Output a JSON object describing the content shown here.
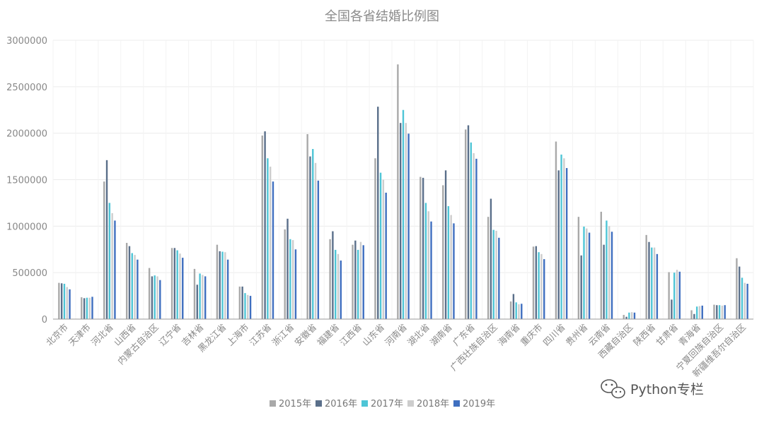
{
  "chart_data": {
    "type": "bar",
    "title": "全国各省结婚比例图",
    "xlabel": "",
    "ylabel": "",
    "ylim": [
      0,
      3000000
    ],
    "yticks": [
      0,
      500000,
      1000000,
      1500000,
      2000000,
      2500000,
      3000000
    ],
    "grid": true,
    "legend_position": "bottom",
    "categories": [
      "北京市",
      "天津市",
      "河北省",
      "山西省",
      "内蒙古自治区",
      "辽宁省",
      "吉林省",
      "黑龙江省",
      "上海市",
      "江苏省",
      "浙江省",
      "安徽省",
      "福建省",
      "江西省",
      "山东省",
      "河南省",
      "湖北省",
      "湖南省",
      "广东省",
      "广西壮族自治区",
      "海南省",
      "重庆市",
      "四川省",
      "贵州省",
      "云南省",
      "西藏自治区",
      "陕西省",
      "甘肃省",
      "青海省",
      "宁夏回族自治区",
      "新疆维吾尔自治区"
    ],
    "series": [
      {
        "name": "2015年",
        "color": "#a9a9a9",
        "values": [
          390000,
          235000,
          1480000,
          820000,
          550000,
          765000,
          540000,
          800000,
          350000,
          1975000,
          965000,
          1990000,
          860000,
          800000,
          1730000,
          2740000,
          1530000,
          1440000,
          2040000,
          1100000,
          190000,
          780000,
          1910000,
          1100000,
          1155000,
          45000,
          905000,
          505000,
          95000,
          155000,
          655000
        ]
      },
      {
        "name": "2016年",
        "color": "#5a6f8a",
        "values": [
          385000,
          225000,
          1710000,
          785000,
          460000,
          765000,
          370000,
          730000,
          350000,
          2020000,
          1080000,
          1750000,
          945000,
          845000,
          2285000,
          2110000,
          1520000,
          1600000,
          2085000,
          1295000,
          270000,
          785000,
          1600000,
          685000,
          800000,
          25000,
          830000,
          210000,
          55000,
          150000,
          565000
        ]
      },
      {
        "name": "2017年",
        "color": "#4ec5d6",
        "values": [
          380000,
          230000,
          1250000,
          710000,
          470000,
          740000,
          490000,
          725000,
          280000,
          1730000,
          860000,
          1830000,
          745000,
          745000,
          1575000,
          2250000,
          1250000,
          1215000,
          1900000,
          960000,
          180000,
          720000,
          1770000,
          995000,
          1060000,
          70000,
          770000,
          500000,
          135000,
          150000,
          445000
        ]
      },
      {
        "name": "2018年",
        "color": "#cdcdcd",
        "values": [
          345000,
          230000,
          1140000,
          690000,
          460000,
          705000,
          475000,
          720000,
          260000,
          1640000,
          850000,
          1680000,
          700000,
          830000,
          1500000,
          2110000,
          1160000,
          1120000,
          1785000,
          950000,
          160000,
          700000,
          1730000,
          975000,
          1000000,
          75000,
          770000,
          530000,
          140000,
          145000,
          390000
        ]
      },
      {
        "name": "2019年",
        "color": "#3f6fc0",
        "values": [
          320000,
          240000,
          1060000,
          640000,
          420000,
          660000,
          460000,
          640000,
          250000,
          1480000,
          750000,
          1490000,
          630000,
          795000,
          1360000,
          1995000,
          1050000,
          1030000,
          1725000,
          875000,
          165000,
          645000,
          1625000,
          930000,
          940000,
          70000,
          700000,
          510000,
          145000,
          150000,
          380000
        ]
      }
    ]
  },
  "watermark": {
    "icon": "wechat-icon",
    "text": "Python专栏"
  }
}
